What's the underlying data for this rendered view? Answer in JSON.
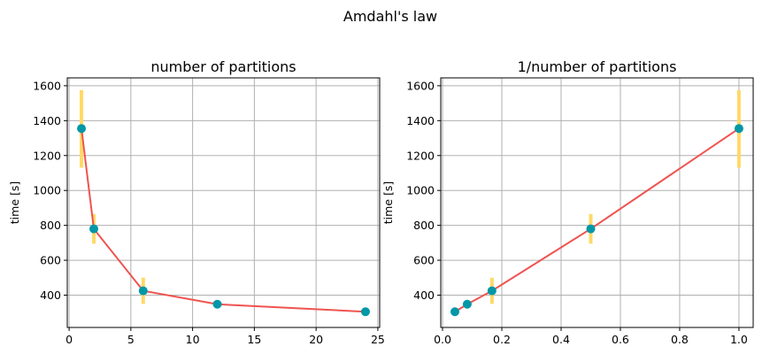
{
  "figure": {
    "title": "Amdahl's law"
  },
  "colors": {
    "line": "#ef5350",
    "marker": "#0097a7",
    "errorbar": "#ffd966",
    "grid": "#b0b0b0",
    "axis": "#000000"
  },
  "chart_data": [
    {
      "type": "line",
      "title": "number of partitions",
      "xlabel": "",
      "ylabel": "time [s]",
      "xlim": [
        -0.15,
        25.15
      ],
      "ylim": [
        215,
        1645
      ],
      "xticks": [
        0,
        5,
        10,
        15,
        20,
        25
      ],
      "yticks": [
        400,
        600,
        800,
        1000,
        1200,
        1400,
        1600
      ],
      "grid": true,
      "series": [
        {
          "x": [
            1,
            2,
            6,
            12,
            24
          ],
          "y": [
            1355,
            780,
            425,
            348,
            305
          ],
          "err_low": [
            1130,
            695,
            350,
            null,
            null
          ],
          "err_high": [
            1575,
            865,
            500,
            null,
            null
          ]
        }
      ]
    },
    {
      "type": "line",
      "title": "1/number of partitions",
      "xlabel": "",
      "ylabel": "time [s]",
      "xlim": [
        -0.006,
        1.048
      ],
      "ylim": [
        215,
        1645
      ],
      "xticks": [
        0.0,
        0.2,
        0.4,
        0.6,
        0.8,
        1.0
      ],
      "xtick_labels": [
        "0.0",
        "0.2",
        "0.4",
        "0.6",
        "0.8",
        "1.0"
      ],
      "yticks": [
        400,
        600,
        800,
        1000,
        1200,
        1400,
        1600
      ],
      "grid": true,
      "series": [
        {
          "x": [
            0.0417,
            0.0833,
            0.1667,
            0.5,
            1.0
          ],
          "y": [
            305,
            348,
            425,
            780,
            1355
          ],
          "err_low": [
            null,
            null,
            350,
            695,
            1130
          ],
          "err_high": [
            null,
            null,
            500,
            865,
            1575
          ]
        }
      ]
    }
  ]
}
